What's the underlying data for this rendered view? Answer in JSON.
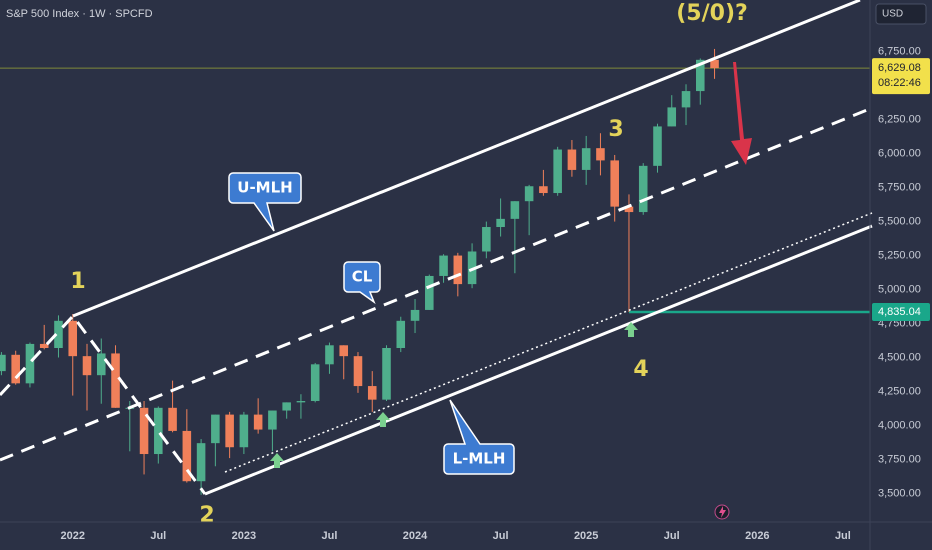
{
  "chart_data": {
    "type": "candlestick",
    "title": "S&P 500 Index · 1W · SPCFD",
    "currency": "USD",
    "xlim": [
      -5.1,
      55.9
    ],
    "xticks": [
      {
        "value": 0,
        "label": "2022"
      },
      {
        "value": 6,
        "label": "Jul"
      },
      {
        "value": 12,
        "label": "2023"
      },
      {
        "value": 18,
        "label": "Jul"
      },
      {
        "value": 24,
        "label": "2024"
      },
      {
        "value": 30,
        "label": "Jul"
      },
      {
        "value": 36,
        "label": "2025"
      },
      {
        "value": 42,
        "label": "Jul"
      },
      {
        "value": 48,
        "label": "2026"
      },
      {
        "value": 54,
        "label": "Jul"
      }
    ],
    "ylim": [
      3290,
      7130
    ],
    "yticks": [
      {
        "value": 3500,
        "label": "3,500.00"
      },
      {
        "value": 3750,
        "label": "3,750.00"
      },
      {
        "value": 4000,
        "label": "4,000.00"
      },
      {
        "value": 4250,
        "label": "4,250.00"
      },
      {
        "value": 4500,
        "label": "4,500.00"
      },
      {
        "value": 4750,
        "label": "4,750.00"
      },
      {
        "value": 5000,
        "label": "5,000.00"
      },
      {
        "value": 5250,
        "label": "5,250.00"
      },
      {
        "value": 5500,
        "label": "5,500.00"
      },
      {
        "value": 5750,
        "label": "5,750.00"
      },
      {
        "value": 6000,
        "label": "6,000.00"
      },
      {
        "value": 6250,
        "label": "6,250.00"
      },
      {
        "value": 6750,
        "label": "6,750.00"
      }
    ],
    "x": [
      -5,
      -4,
      -3,
      -2,
      -1,
      0,
      1,
      2,
      3,
      4,
      5,
      6,
      7,
      8,
      9,
      10,
      11,
      12,
      13,
      14,
      15,
      16,
      17,
      18,
      19,
      20,
      21,
      22,
      23,
      24,
      25,
      26,
      27,
      28,
      29,
      30,
      31,
      32,
      33,
      34,
      35,
      36,
      37,
      38,
      39,
      40,
      41,
      42,
      43,
      44,
      45
    ],
    "open": [
      4400,
      4520,
      4310,
      4600,
      4570,
      4770,
      4510,
      4370,
      4530,
      4130,
      4130,
      3790,
      4130,
      3960,
      3590,
      3870,
      4080,
      3840,
      4080,
      3970,
      4110,
      4170,
      4180,
      4450,
      4590,
      4510,
      4290,
      4190,
      4570,
      4770,
      4850,
      5100,
      5250,
      5040,
      5280,
      5460,
      5520,
      5650,
      5760,
      5710,
      6030,
      5880,
      6040,
      5950,
      5610,
      5570,
      5910,
      6200,
      6340,
      6460,
      6690
    ],
    "high": [
      4540,
      4550,
      4610,
      4740,
      4810,
      4820,
      4600,
      4640,
      4590,
      4180,
      4180,
      4140,
      4330,
      4120,
      3900,
      4080,
      4100,
      4100,
      4200,
      4110,
      4170,
      4230,
      4460,
      4610,
      4590,
      4540,
      4400,
      4590,
      4800,
      4930,
      5110,
      5260,
      5270,
      5340,
      5500,
      5670,
      5650,
      5770,
      5880,
      6050,
      6100,
      6130,
      6150,
      5990,
      5700,
      5930,
      6220,
      6430,
      6510,
      6700,
      6770
    ],
    "low": [
      4370,
      4300,
      4280,
      4560,
      4500,
      4220,
      4110,
      4160,
      4130,
      3810,
      3640,
      3720,
      3950,
      3580,
      3490,
      3700,
      3760,
      3790,
      3940,
      3810,
      4050,
      4050,
      4170,
      4380,
      4340,
      4240,
      4100,
      4180,
      4540,
      4680,
      4850,
      5050,
      4950,
      5010,
      5230,
      5390,
      5120,
      5400,
      5690,
      5690,
      5830,
      5770,
      5840,
      5500,
      4835,
      5550,
      5860,
      6200,
      6210,
      6360,
      6550
    ],
    "close": [
      4520,
      4310,
      4600,
      4570,
      4770,
      4510,
      4370,
      4530,
      4130,
      4130,
      3790,
      4130,
      3960,
      3590,
      3870,
      4080,
      3840,
      4080,
      3970,
      4110,
      4170,
      4180,
      4450,
      4590,
      4510,
      4290,
      4190,
      4570,
      4770,
      4850,
      5100,
      5250,
      5040,
      5280,
      5460,
      5520,
      5650,
      5760,
      5710,
      6030,
      5880,
      6040,
      5950,
      5610,
      5570,
      5910,
      6200,
      6340,
      6460,
      6690,
      6629
    ],
    "up_color": "#4fae8c",
    "down_color": "#f0805a",
    "last_price": {
      "value": 6629.08,
      "label": "6,629.08"
    },
    "countdown": "08:22:46",
    "level": {
      "value": 4835.04,
      "label": "4,835.04"
    },
    "annotations": [
      "(5/0)?",
      "1",
      "2",
      "3",
      "4",
      "U-MLH",
      "CL",
      "L-MLH"
    ]
  }
}
